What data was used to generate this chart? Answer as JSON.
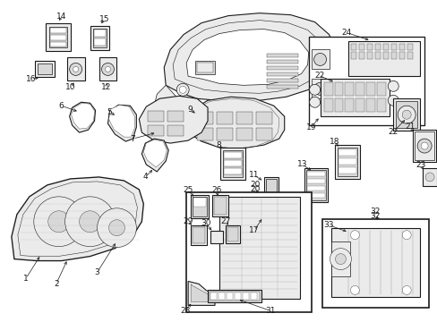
{
  "bg_color": "#ffffff",
  "line_color": "#1a1a1a",
  "fig_width": 4.89,
  "fig_height": 3.6,
  "dpi": 100,
  "label_fontsize": 6.5,
  "lw_main": 0.8,
  "lw_detail": 0.5,
  "gray_fill": "#d8d8d8",
  "white_fill": "#ffffff",
  "light_gray": "#ebebeb"
}
